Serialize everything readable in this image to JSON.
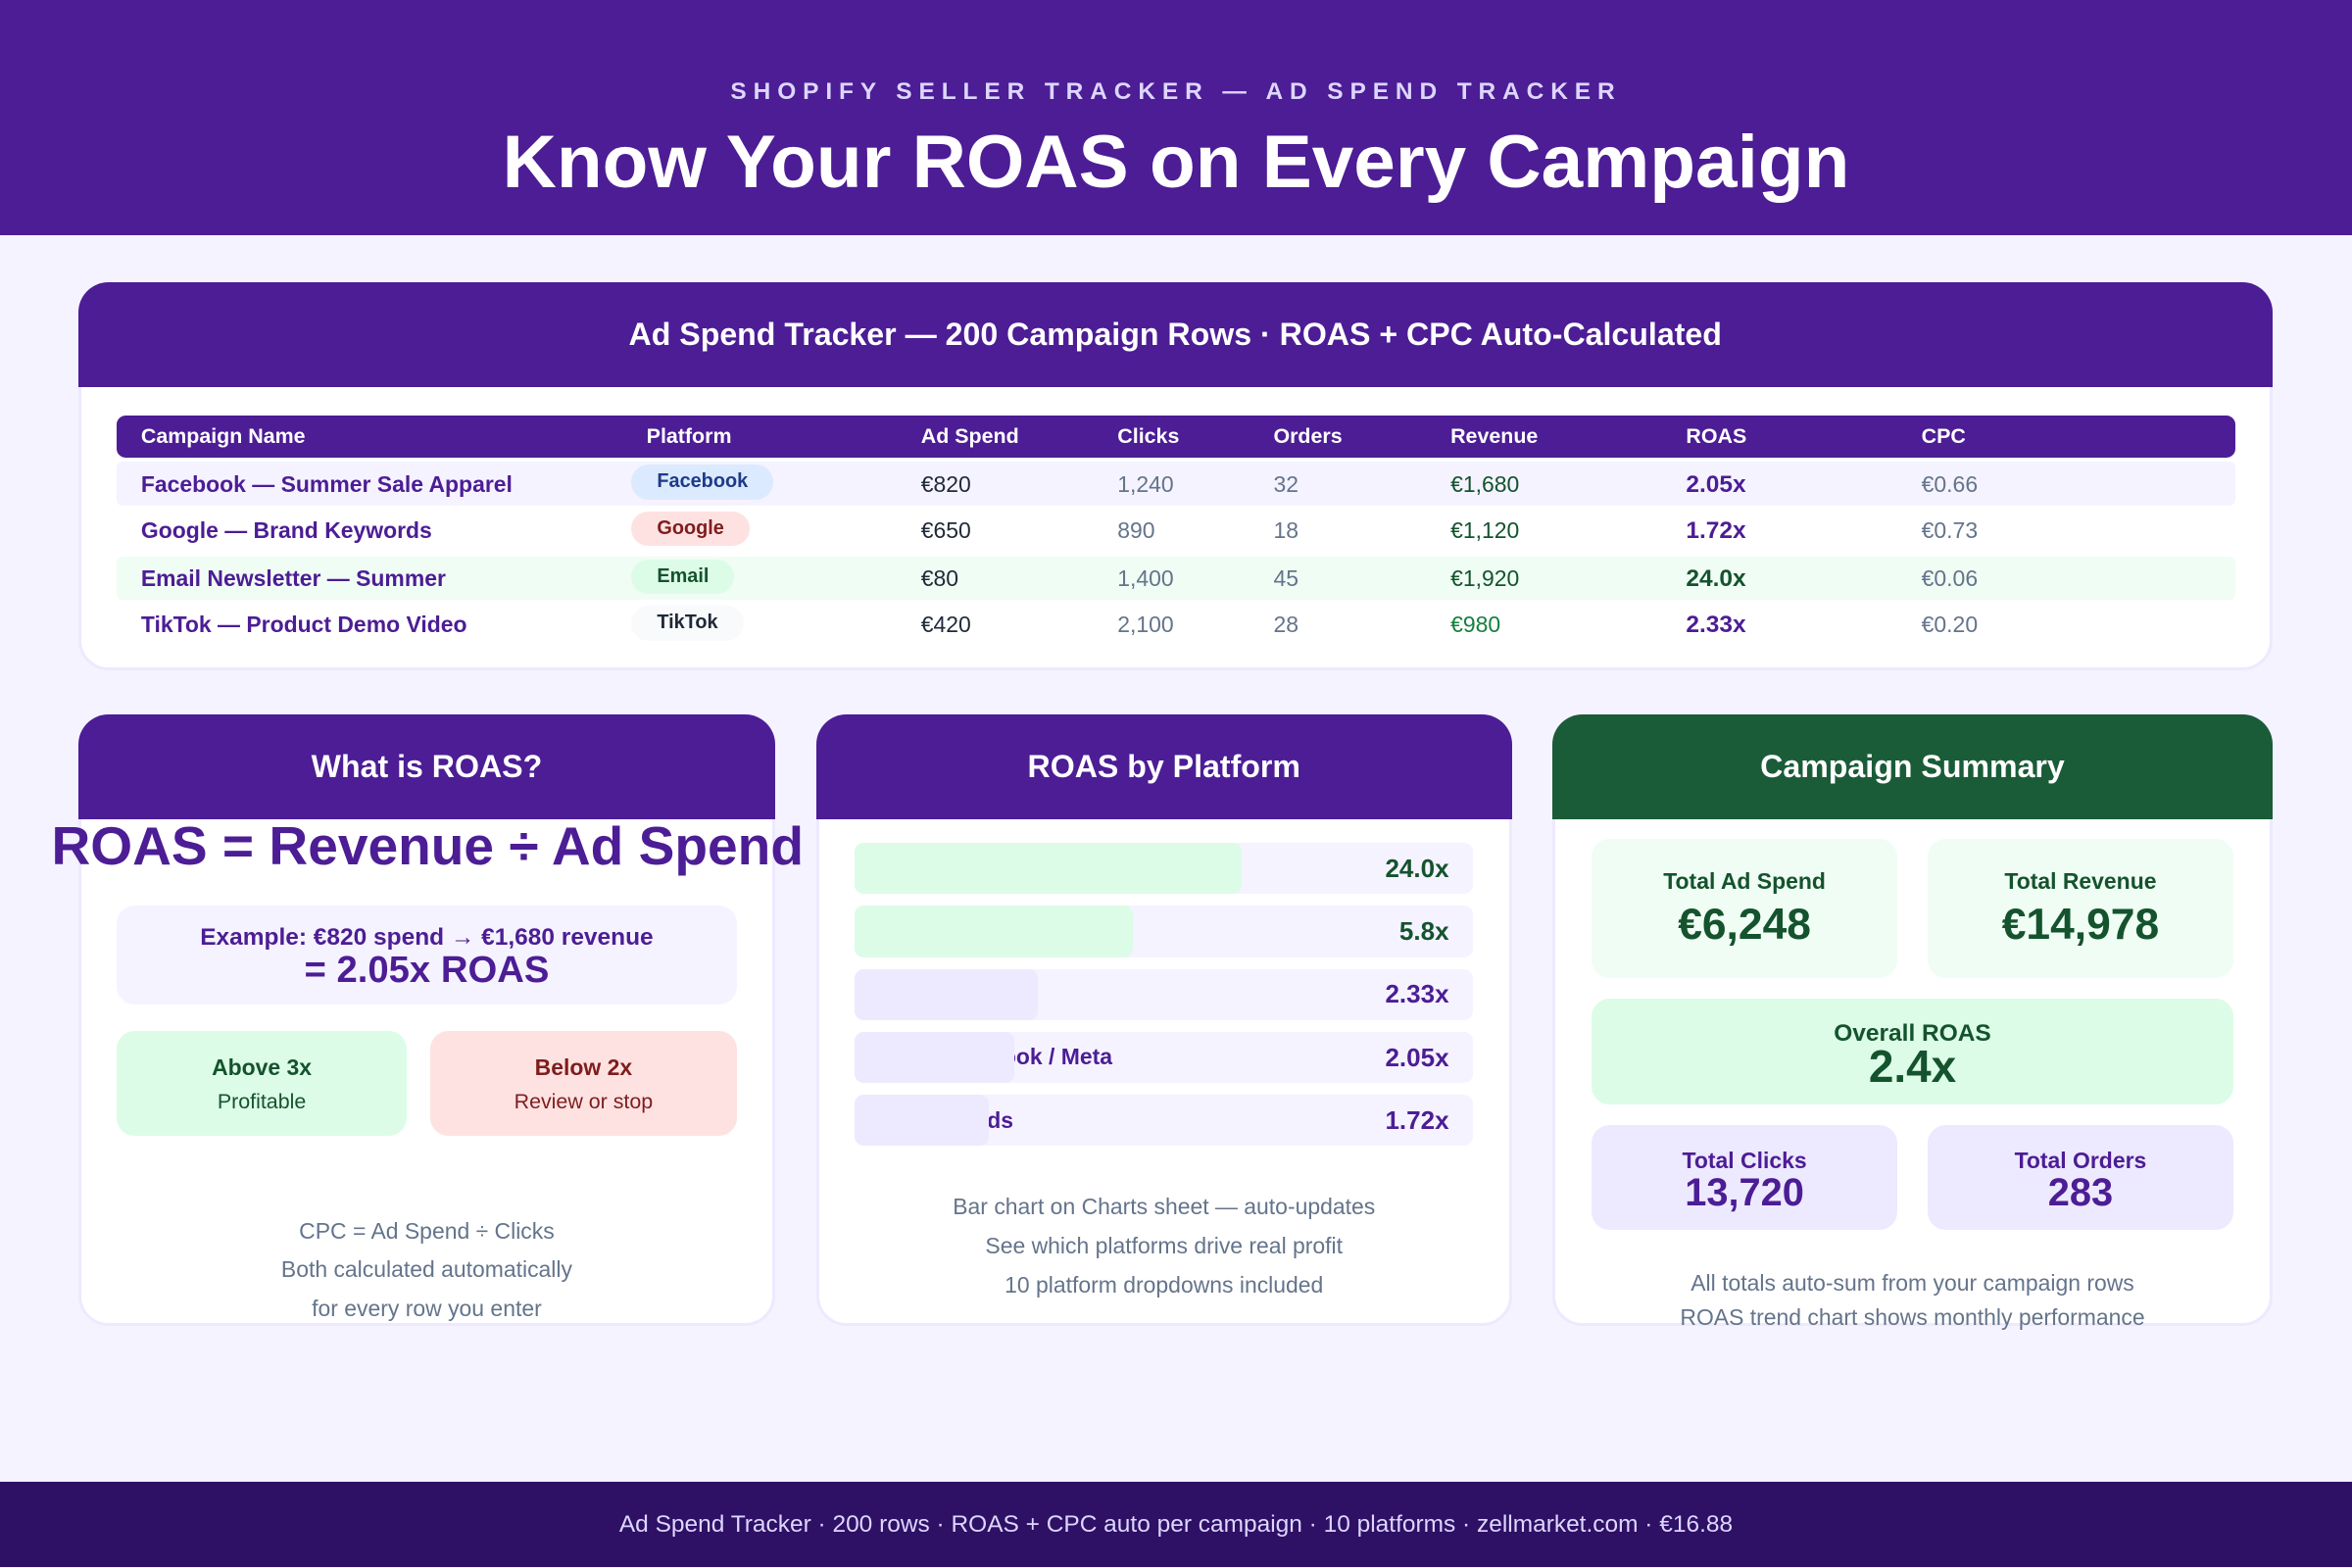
{
  "header": {
    "subtitle": "SHOPIFY SELLER TRACKER — AD SPEND TRACKER",
    "title": "Know Your ROAS on Every Campaign"
  },
  "table_card": {
    "title": "Ad Spend Tracker — 200 Campaign Rows · ROAS + CPC Auto-Calculated",
    "columns": [
      "Campaign Name",
      "Platform",
      "Ad Spend",
      "Clicks",
      "Orders",
      "Revenue",
      "ROAS",
      "CPC"
    ],
    "rows": [
      [
        "Facebook — Summer Sale Apparel",
        "Facebook",
        "€820",
        "1,240",
        "32",
        "€1,680",
        "2.05x",
        "€0.66"
      ],
      [
        "Google — Brand Keywords",
        "Google",
        "€650",
        "890",
        "18",
        "€1,120",
        "1.72x",
        "€0.73"
      ],
      [
        "Email Newsletter — Summer",
        "Email",
        "€80",
        "1,400",
        "45",
        "€1,920",
        "24.0x",
        "€0.06"
      ],
      [
        "TikTok — Product Demo Video",
        "TikTok",
        "€420",
        "2,100",
        "28",
        "€980",
        "2.33x",
        "€0.20"
      ]
    ]
  },
  "roas_card": {
    "title": "What is ROAS?",
    "formula": "ROAS = Revenue ÷ Ad Spend",
    "example": "Example: €820 spend → €1,680 revenue",
    "example_result": "= 2.05x ROAS",
    "above_title": "Above 3x",
    "above_sub": "Profitable",
    "below_title": "Below 2x",
    "below_sub": "Review or stop",
    "notes": [
      "CPC = Ad Spend ÷ Clicks",
      "Both calculated automatically",
      "for every row you enter"
    ]
  },
  "platform_card": {
    "title": "ROAS by Platform",
    "bars": [
      {
        "label": "",
        "value": "24.0x",
        "fill": 0.626,
        "color": "#dcfce7",
        "text": "#14532d"
      },
      {
        "label": "",
        "value": "5.8x",
        "fill": 0.45,
        "color": "#dcfce7",
        "text": "#14532d"
      },
      {
        "label": "",
        "value": "2.33x",
        "fill": 0.296,
        "color": "#ede9fe",
        "text": "#4c1d95"
      },
      {
        "label": "Facebook / Meta",
        "value": "2.05x",
        "fill": 0.257,
        "color": "#ede9fe",
        "text": "#4c1d95"
      },
      {
        "label": "Google Ads",
        "value": "1.72x",
        "fill": 0.216,
        "color": "#ede9fe",
        "text": "#4c1d95"
      }
    ],
    "notes": [
      "Bar chart on Charts sheet — auto-updates",
      "See which platforms drive real profit",
      "10 platform dropdowns included"
    ]
  },
  "summary_card": {
    "title": "Campaign Summary",
    "spend_label": "Total Ad Spend",
    "spend": "€6,248",
    "revenue_label": "Total Revenue",
    "revenue": "€14,978",
    "roas_label": "Overall ROAS",
    "roas": "2.4x",
    "clicks_label": "Total Clicks",
    "clicks": "13,720",
    "orders_label": "Total Orders",
    "orders": "283",
    "notes": [
      "All totals auto-sum from your campaign rows",
      "ROAS trend chart shows monthly performance"
    ]
  },
  "footer": "Ad Spend Tracker · 200 rows · ROAS + CPC auto per campaign · 10 platforms · zellmarket.com · €16.88"
}
